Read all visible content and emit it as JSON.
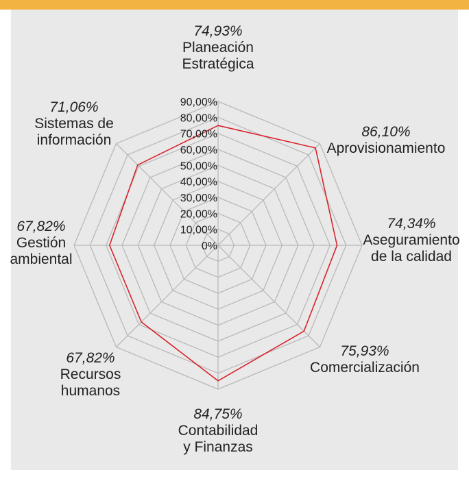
{
  "colors": {
    "header_band": "#f2b441",
    "panel_bg": "#e9e9ea",
    "grid": "#b9b9b9",
    "series": "#d8232a"
  },
  "chart_data": {
    "type": "radar",
    "title": "",
    "rlim": [
      0,
      90
    ],
    "tick_values": [
      0,
      10,
      20,
      30,
      40,
      50,
      60,
      70,
      80,
      90
    ],
    "tick_labels": [
      "0%",
      "10,00%",
      "20,00%",
      "30,00%",
      "40,00%",
      "50,00%",
      "60,00%",
      "70,00%",
      "80,00%",
      "90,00%"
    ],
    "grid": true,
    "categories": [
      [
        "Planeación",
        "Estratégica"
      ],
      [
        "Aprovisionamiento"
      ],
      [
        "Aseguramiento",
        "de la calidad"
      ],
      [
        "Comercialización"
      ],
      [
        "Contabilidad",
        "y Finanzas"
      ],
      [
        "Recursos",
        "humanos"
      ],
      [
        "Gestión",
        "ambiental"
      ],
      [
        "Sistemas de",
        "información"
      ]
    ],
    "value_labels": [
      "74,93%",
      "86,10%",
      "74,34%",
      "75,93%",
      "84,75%",
      "67,82%",
      "67,82%",
      "71,06%"
    ],
    "series": [
      {
        "values": [
          74.93,
          86.1,
          74.34,
          75.93,
          84.75,
          67.82,
          67.82,
          71.06
        ]
      }
    ]
  }
}
